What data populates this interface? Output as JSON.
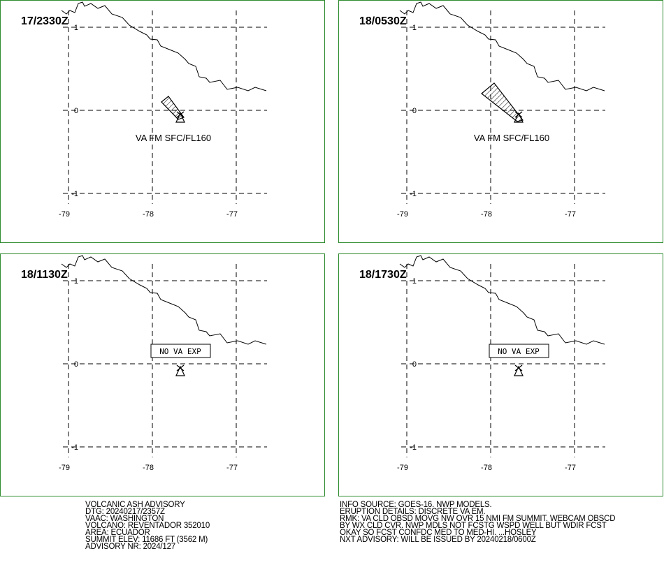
{
  "panels": [
    {
      "time": "17/2330Z",
      "label": "VA FM SFC/FL160"
    },
    {
      "time": "18/0530Z",
      "label": "VA FM SFC/FL160"
    },
    {
      "time": "18/1130Z",
      "label": "NO VA EXP"
    },
    {
      "time": "18/1730Z",
      "label": "NO VA EXP"
    }
  ],
  "lat_ticks": [
    1,
    0,
    -1
  ],
  "lon_ticks": [
    -79,
    -78,
    -77
  ],
  "advisory_left": [
    "VOLCANIC ASH ADVISORY",
    "DTG: 20240217/2357Z",
    "VAAC: WASHINGTON",
    "VOLCANO: REVENTADOR 352010",
    "AREA: ECUADOR",
    "SUMMIT ELEV: 11686 FT (3562 M)",
    "ADVISORY NR: 2024/127"
  ],
  "advisory_right": [
    "INFO SOURCE: GOES-16. NWP MODELS.",
    "ERUPTION DETAILS: DISCRETE VA EM.",
    "RMK: VA CLD OBSD MOVG NW OVR 15 NMI FM SUMMIT. WEBCAM OBSCD",
    "BY WX CLD CVR. NWP MDLS NOT FCSTG WSPD WELL BUT WDIR FCST",
    "OKAY SO FCST CONFDC MED TO MED-HI. ...HOSLEY",
    "NXT ADVISORY: WILL BE ISSUED BY 20240218/0600Z"
  ]
}
